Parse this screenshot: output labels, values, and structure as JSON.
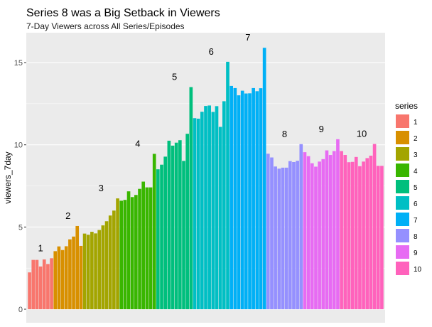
{
  "chart_data": {
    "type": "bar",
    "title": "Series 8 was a Big Setback in Viewers",
    "subtitle": "7-Day Viewers across All Series/Episodes",
    "xlabel": "",
    "ylabel": "viewers_7day",
    "ylim": [
      0,
      16.2
    ],
    "yticks": [
      "0",
      "5",
      "10",
      "15"
    ],
    "grid": true,
    "legend_title": "series",
    "legend_position": "right",
    "series": [
      {
        "name": "1",
        "label": "1",
        "color": "#F8766D",
        "values": [
          2.24,
          3.0,
          3.0,
          2.6,
          3.03,
          2.75,
          3.1
        ]
      },
      {
        "name": "2",
        "label": "2",
        "color": "#D89000",
        "values": [
          3.53,
          3.82,
          3.6,
          3.83,
          4.25,
          4.42,
          5.06,
          3.85
        ]
      },
      {
        "name": "3",
        "label": "3",
        "color": "#A3A500",
        "values": [
          4.6,
          4.53,
          4.71,
          4.61,
          4.82,
          5.1,
          5.35,
          5.7,
          6.0,
          6.74
        ]
      },
      {
        "name": "4",
        "label": "4",
        "color": "#39B600",
        "values": [
          6.6,
          6.65,
          7.17,
          6.82,
          6.95,
          7.32,
          7.76,
          7.41,
          7.41,
          9.45
        ]
      },
      {
        "name": "5",
        "label": "5",
        "color": "#00BF7D",
        "values": [
          8.51,
          8.79,
          9.28,
          10.25,
          9.95,
          10.13,
          10.28,
          9.02,
          10.67,
          13.51
        ]
      },
      {
        "name": "6",
        "label": "6",
        "color": "#00BFC4",
        "values": [
          11.62,
          11.59,
          12.01,
          12.36,
          12.39,
          12.0,
          12.35,
          11.09,
          12.65,
          15.05
        ]
      },
      {
        "name": "7",
        "label": "7",
        "color": "#00B0F6",
        "values": [
          13.58,
          13.45,
          13.01,
          13.29,
          13.12,
          13.13,
          13.45,
          13.26,
          13.44,
          15.9
        ]
      },
      {
        "name": "8",
        "label": "8",
        "color": "#9590FF",
        "values": [
          9.46,
          9.23,
          8.68,
          8.55,
          8.61,
          8.61,
          9.01,
          8.95,
          9.03,
          10.04
        ]
      },
      {
        "name": "9",
        "label": "9",
        "color": "#E76BF3",
        "values": [
          9.55,
          9.31,
          8.88,
          8.67,
          8.98,
          9.13,
          9.66,
          9.38,
          9.62,
          10.34
        ]
      },
      {
        "name": "10",
        "label": "10",
        "color": "#FF62BC",
        "values": [
          9.62,
          9.38,
          8.94,
          8.96,
          9.26,
          8.7,
          8.98,
          9.19,
          9.34,
          10.05,
          8.72,
          8.72
        ]
      }
    ]
  }
}
